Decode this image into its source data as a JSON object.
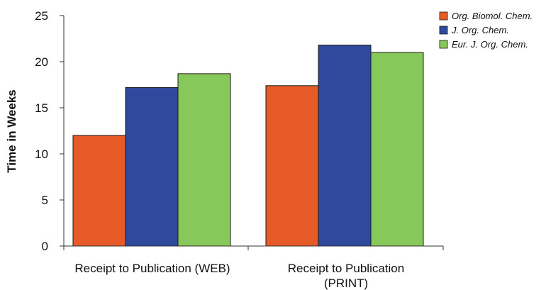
{
  "chart_data": {
    "type": "bar",
    "title": "",
    "xlabel": "",
    "ylabel": "Time in Weeks",
    "ylim": [
      0,
      25
    ],
    "yticks": [
      0,
      5,
      10,
      15,
      20,
      25
    ],
    "grid": false,
    "legend_position": "top-right",
    "categories": [
      [
        "Receipt to Publication (WEB)"
      ],
      [
        "Receipt to Publication",
        "(PRINT)"
      ]
    ],
    "series": [
      {
        "name": "Org. Biomol. Chem.",
        "color": "#E55A27",
        "values": [
          12.0,
          17.4
        ]
      },
      {
        "name": "J. Org. Chem.",
        "color": "#2F4A9C",
        "values": [
          17.2,
          21.8
        ]
      },
      {
        "name": "Eur. J. Org. Chem.",
        "color": "#86C95A",
        "values": [
          18.7,
          21.0
        ]
      }
    ]
  }
}
